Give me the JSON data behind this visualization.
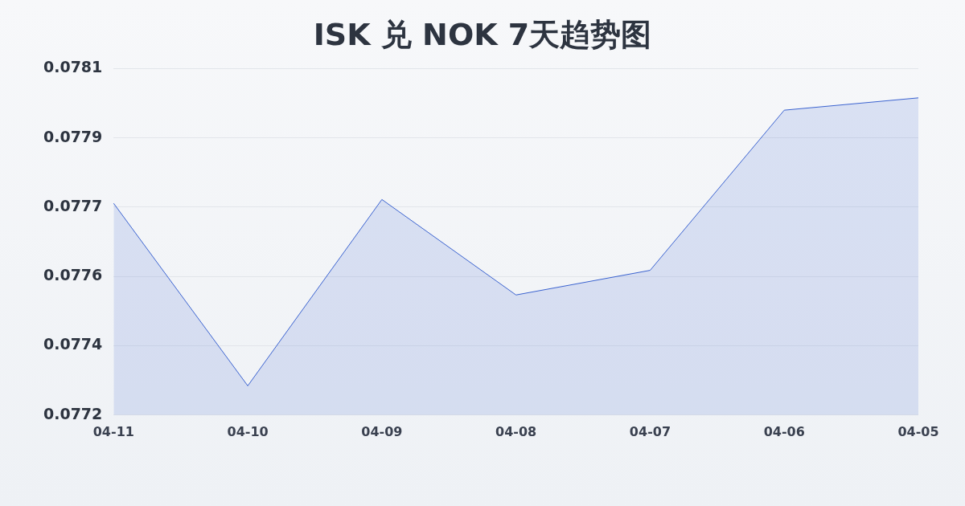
{
  "chart_data": {
    "type": "area",
    "title": "ISK 兑 NOK 7天趋势图",
    "categories": [
      "04-11",
      "04-10",
      "04-09",
      "04-08",
      "04-07",
      "04-06",
      "04-05"
    ],
    "series": [
      {
        "color": "#3b63d0",
        "values": [
          0.07775,
          0.077276,
          0.07776,
          0.077512,
          0.077576,
          0.077992,
          0.078024
        ]
      }
    ],
    "ylim": [
      0.0772,
      0.0781
    ],
    "yticks": [
      0.0772,
      {
        "value": 0.07738,
        "label": "0.0774"
      },
      {
        "value": 0.07756,
        "label": "0.0776"
      },
      {
        "value": 0.07774,
        "label": "0.0777"
      },
      {
        "value": 0.07792,
        "label": "0.0779"
      },
      0.0781
    ],
    "grid": "y",
    "legend": false
  }
}
